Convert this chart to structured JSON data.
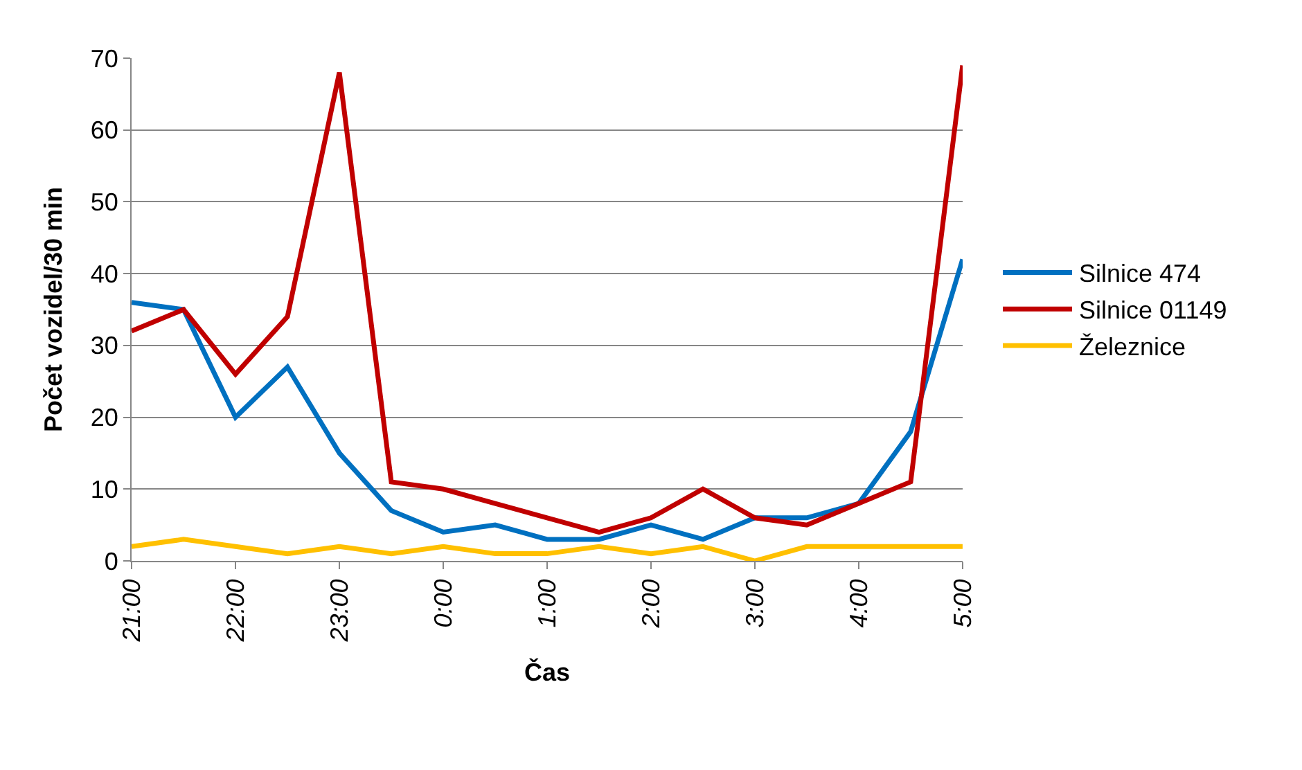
{
  "chart_data": {
    "type": "line",
    "xlabel": "Čas",
    "ylabel": "Počet vozidel/30 min",
    "categories": [
      "21:00",
      null,
      "22:00",
      null,
      "23:00",
      null,
      "0:00",
      null,
      "1:00",
      null,
      "2:00",
      null,
      "3:00",
      null,
      "4:00",
      null,
      "5:00"
    ],
    "series": [
      {
        "name": "Silnice 474",
        "color": "#0070c0",
        "values": [
          36,
          35,
          20,
          27,
          15,
          7,
          4,
          5,
          3,
          3,
          5,
          3,
          6,
          6,
          8,
          18,
          42
        ]
      },
      {
        "name": "Silnice 01149",
        "color": "#c00000",
        "values": [
          32,
          35,
          26,
          34,
          68,
          11,
          10,
          8,
          6,
          4,
          6,
          10,
          6,
          5,
          8,
          11,
          69
        ]
      },
      {
        "name": "Železnice",
        "color": "#ffc000",
        "values": [
          2,
          3,
          2,
          1,
          2,
          1,
          2,
          1,
          1,
          2,
          1,
          2,
          0,
          2,
          2,
          2,
          2
        ]
      }
    ],
    "ylim": [
      0,
      70
    ],
    "yticks": [
      0,
      10,
      20,
      30,
      40,
      50,
      60,
      70
    ],
    "grid": "y",
    "legend": "right",
    "marker": "none",
    "line_style": "solid"
  }
}
